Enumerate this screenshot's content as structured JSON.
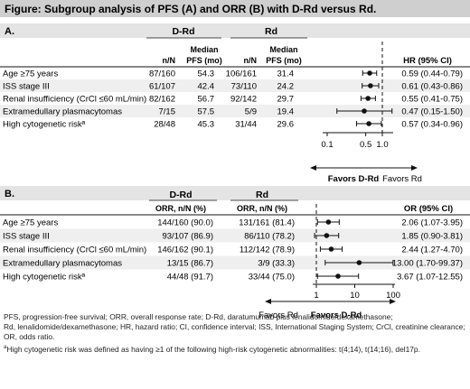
{
  "title": "Figure: Subgroup analysis of PFS (A) and ORR (B) with D-Rd versus Rd.",
  "panels": [
    {
      "label": "A.",
      "group_headers": [
        "D-Rd",
        "Rd"
      ],
      "col_headers": [
        "n/N",
        "Median PFS (mo)",
        "n/N",
        "Median PFS (mo)",
        "HR (95% CI)"
      ],
      "favors_left": "Favors D-Rd",
      "favors_right": "Favors Rd"
    },
    {
      "label": "B.",
      "group_headers": [
        "D-Rd",
        "Rd"
      ],
      "col_headers": [
        "ORR, n/N (%)",
        "ORR, n/N (%)",
        "OR (95% CI)"
      ],
      "favors_left": "Favors Rd",
      "favors_right": "Favors D-Rd"
    }
  ],
  "chart_data": [
    {
      "type": "scatter",
      "title": "A.",
      "xlabel": "HR",
      "xscale": "log",
      "xlim": [
        0.1,
        2
      ],
      "xticks": [
        "0.1",
        "0.5",
        "1.0"
      ],
      "reference_line": 1,
      "rows": [
        {
          "subgroup": "Age ≥75 years",
          "drd_n": "87/160",
          "drd_median": "54.3",
          "rd_n": "106/161",
          "rd_median": "31.4",
          "hr": 0.59,
          "lo": 0.44,
          "hi": 0.79,
          "label": "0.59 (0.44-0.79)"
        },
        {
          "subgroup": "ISS stage III",
          "drd_n": "61/107",
          "drd_median": "42.4",
          "rd_n": "73/110",
          "rd_median": "24.2",
          "hr": 0.61,
          "lo": 0.43,
          "hi": 0.86,
          "label": "0.61 (0.43-0.86)"
        },
        {
          "subgroup": "Renal insufficiency (CrCl ≤60 mL/min)",
          "drd_n": "82/162",
          "drd_median": "56.7",
          "rd_n": "92/142",
          "rd_median": "29.7",
          "hr": 0.55,
          "lo": 0.41,
          "hi": 0.75,
          "label": "0.55 (0.41-0.75)"
        },
        {
          "subgroup": "Extramedullary plasmacytomas",
          "drd_n": "7/15",
          "drd_median": "57.5",
          "rd_n": "5/9",
          "rd_median": "19.4",
          "hr": 0.47,
          "lo": 0.15,
          "hi": 1.5,
          "label": "0.47 (0.15-1.50)"
        },
        {
          "subgroup": "High cytogenetic riskª",
          "drd_n": "28/48",
          "drd_median": "45.3",
          "rd_n": "31/44",
          "rd_median": "29.6",
          "hr": 0.57,
          "lo": 0.34,
          "hi": 0.96,
          "label": "0.57 (0.34-0.96)"
        }
      ]
    },
    {
      "type": "scatter",
      "title": "B.",
      "xlabel": "OR",
      "xscale": "log",
      "xlim": [
        1,
        100
      ],
      "xticks": [
        "1",
        "10",
        "100"
      ],
      "reference_line": 1,
      "rows": [
        {
          "subgroup": "Age ≥75 years",
          "drd_orr": "144/160 (90.0)",
          "rd_orr": "131/161 (81.4)",
          "or": 2.06,
          "lo": 1.07,
          "hi": 3.95,
          "label": "2.06 (1.07-3.95)"
        },
        {
          "subgroup": "ISS stage III",
          "drd_orr": "93/107 (86.9)",
          "rd_orr": "86/110 (78.2)",
          "or": 1.85,
          "lo": 0.9,
          "hi": 3.81,
          "label": "1.85 (0.90-3.81)"
        },
        {
          "subgroup": "Renal insufficiency (CrCl ≤60 mL/min)",
          "drd_orr": "146/162 (90.1)",
          "rd_orr": "112/142 (78.9)",
          "or": 2.44,
          "lo": 1.27,
          "hi": 4.7,
          "label": "2.44 (1.27-4.70)"
        },
        {
          "subgroup": "Extramedullary plasmacytomas",
          "drd_orr": "13/15 (86.7)",
          "rd_orr": "3/9 (33.3)",
          "or": 13.0,
          "lo": 1.7,
          "hi": 99.37,
          "label": "13.00 (1.70-99.37)"
        },
        {
          "subgroup": "High cytogenetic riskª",
          "drd_orr": "44/48 (91.7)",
          "rd_orr": "33/44 (75.0)",
          "or": 3.67,
          "lo": 1.07,
          "hi": 12.55,
          "label": "3.67 (1.07-12.55)"
        }
      ]
    }
  ],
  "footnotes": {
    "abbrev_1": "PFS, progression-free survival; ORR, overall response rate; D-Rd, daratumumab plus lenalidomide/dexamethasone;",
    "abbrev_2": "Rd, lenalidomide/dexamethasone; HR, hazard ratio; CI, confidence interval; ISS, International Staging System; CrCl, creatinine clearance;",
    "abbrev_3": "OR, odds ratio.",
    "note_marker": "a",
    "note": "High cytogenetic risk was defined as having ≥1 of the following high-risk cytogenetic abnormalities: t(4;14), t(14;16), del17p."
  },
  "colors": {
    "title_bar": "#cfcfcf",
    "panel_bar": "#e4e4e4",
    "row_alt": "#efefef",
    "ink": "#111111"
  }
}
